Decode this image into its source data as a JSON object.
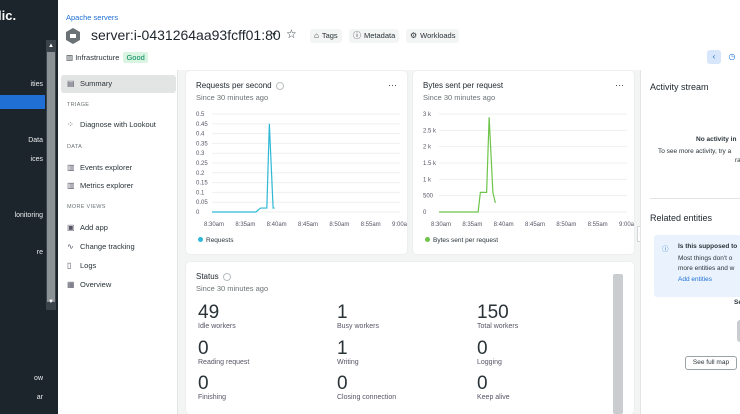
{
  "leftnav": {
    "logo": "lic.",
    "items": [
      {
        "label": "ities",
        "active": false
      },
      {
        "label": "",
        "active": true
      },
      {
        "label": "Data",
        "active": false
      },
      {
        "label": "ices",
        "active": false
      },
      {
        "label": "lonitoring",
        "active": false
      },
      {
        "label": "re",
        "active": false
      },
      {
        "label": "",
        "active": false
      },
      {
        "label": "ow",
        "active": false
      },
      {
        "label": "ar",
        "active": false
      }
    ]
  },
  "header": {
    "breadcrumb": "Apache servers",
    "title": "server:i-0431264aa93fcff01:80",
    "buttons": {
      "tags": "Tags",
      "metadata": "Metadata",
      "workloads": "Workloads"
    },
    "entity_type": "Infrastructure",
    "health": "Good"
  },
  "subnav": {
    "summary": "Summary",
    "sections": {
      "triage": "TRIAGE",
      "data": "DATA",
      "more_views": "MORE VIEWS"
    },
    "diagnose": "Diagnose with Lookout",
    "events": "Events explorer",
    "metrics": "Metrics explorer",
    "add_app": "Add app",
    "change_tracking": "Change tracking",
    "logs": "Logs",
    "overview": "Overview"
  },
  "requests_card": {
    "title": "Requests per second",
    "subtitle": "Since 30 minutes ago",
    "legend": "Requests"
  },
  "bytes_card": {
    "title": "Bytes sent per request",
    "subtitle": "Since 30 minutes ago",
    "legend": "Bytes sent per request"
  },
  "chart_data": [
    {
      "type": "line",
      "title": "Requests per second",
      "x": [
        "8:30am",
        "8:35am",
        "8:40am",
        "8:45am",
        "8:50am",
        "8:55am",
        "9:00a"
      ],
      "y_ticks": [
        "0",
        "0.05",
        "0.1",
        "0.15",
        "0.2",
        "0.25",
        "0.3",
        "0.35",
        "0.4",
        "0.45",
        "0.5"
      ],
      "ylim": [
        0,
        0.5
      ],
      "series": [
        {
          "name": "Requests",
          "color": "#2eb8d6",
          "points": [
            [
              0,
              0
            ],
            [
              1.4,
              0
            ],
            [
              1.55,
              0.02
            ],
            [
              1.75,
              0.02
            ],
            [
              1.83,
              0.45
            ],
            [
              1.95,
              0.02
            ],
            [
              2.0,
              0.02
            ]
          ]
        }
      ]
    },
    {
      "type": "line",
      "title": "Bytes sent per request",
      "x": [
        "8:30am",
        "8:35am",
        "8:40am",
        "8:45am",
        "8:50am",
        "8:55am",
        "9:00a"
      ],
      "y_ticks": [
        "0",
        "500",
        "1 k",
        "1.5 k",
        "2 k",
        "2.5 k",
        "3 k"
      ],
      "ylim": [
        0,
        3000
      ],
      "series": [
        {
          "name": "Bytes sent per request",
          "color": "#6ec44a",
          "points": [
            [
              0,
              0
            ],
            [
              1.25,
              0
            ],
            [
              1.32,
              600
            ],
            [
              1.52,
              600
            ],
            [
              1.6,
              2900
            ],
            [
              1.72,
              600
            ],
            [
              1.8,
              280
            ]
          ]
        }
      ]
    }
  ],
  "status_card": {
    "title": "Status",
    "subtitle": "Since 30 minutes ago",
    "stats": [
      {
        "value": "49",
        "label": "Idle workers"
      },
      {
        "value": "1",
        "label": "Busy workers"
      },
      {
        "value": "150",
        "label": "Total workers"
      },
      {
        "value": "0",
        "label": "Reading request"
      },
      {
        "value": "1",
        "label": "Writing"
      },
      {
        "value": "0",
        "label": "Logging"
      },
      {
        "value": "0",
        "label": "Finishing"
      },
      {
        "value": "0",
        "label": "Closing connection"
      },
      {
        "value": "0",
        "label": "Keep alive"
      }
    ]
  },
  "activity": {
    "title": "Activity stream",
    "empty_title": "No activity in",
    "empty_body_1": "To see more activity, try a",
    "empty_body_2": "ra",
    "related_title": "Related entities",
    "note_title": "Is this supposed to",
    "note_body_1": "Most things don't o",
    "note_body_2": "more entities and w",
    "note_link": "Add entities",
    "se": "Se",
    "see_full_map": "See full map"
  }
}
